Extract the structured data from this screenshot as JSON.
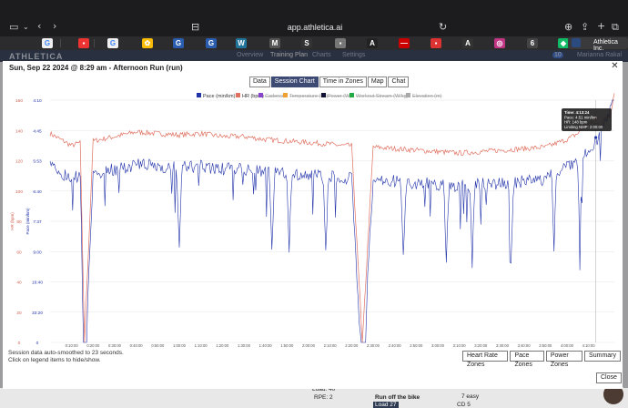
{
  "browser": {
    "url": "app.athletica.ai",
    "active_tab_label": "Athletica Inc."
  },
  "site_nav": {
    "logo": "ATHLETICA",
    "items": [
      "Overview",
      "Training Plan",
      "Charts",
      "Settings"
    ],
    "notification_count": "10",
    "user": "Marianna Rakal"
  },
  "modal": {
    "title": "Sun, Sep 22 2024 @ 8:29 am - Afternoon Run (run)",
    "tabs": [
      "Data",
      "Session Chart",
      "Time in Zones",
      "Map",
      "Chat"
    ],
    "active_tab": "Session Chart",
    "footnote_line1": "Session data auto-smoothed to 23 seconds.",
    "footnote_line2": "Click on legend items to hide/show.",
    "zone_buttons": [
      "Heart Rate Zones",
      "Pace Zones",
      "Power Zones",
      "Summary"
    ],
    "close_label": "Close"
  },
  "chart_data": {
    "type": "line",
    "legend": [
      {
        "name": "Pace (min/km)",
        "color": "#2233aa",
        "active": true
      },
      {
        "name": "HR (bpm)",
        "color": "#e07060",
        "active": true
      },
      {
        "name": "Cadence",
        "color": "#8844cc",
        "active": false
      },
      {
        "name": "Temperature (°C)",
        "color": "#f0a030",
        "active": false
      },
      {
        "name": "Power (W)",
        "color": "#111133",
        "active": false
      },
      {
        "name": "Workout Stream (W/kg)",
        "color": "#22aa44",
        "active": false
      },
      {
        "name": "Elevation (m)",
        "color": "#aaaaaa",
        "active": false
      }
    ],
    "hr_axis_ticks": [
      "160",
      "140",
      "120",
      "100",
      "80",
      "60",
      "40",
      "20",
      "0"
    ],
    "pace_axis_ticks": [
      "4:10",
      "4:45",
      "5:53",
      "6:40",
      "7:37",
      "9:00",
      "16:40",
      "33:20",
      "0"
    ],
    "hr_axis_label": "HR (bpm)",
    "pace_axis_label": "Pace (min/km)",
    "hr_range": [
      0,
      160
    ],
    "x_ticks": [
      "0:10:00",
      "0:20:00",
      "0:30:00",
      "0:40:00",
      "0:50:00",
      "1:00:00",
      "1:10:00",
      "1:20:00",
      "1:30:00",
      "1:40:00",
      "1:50:00",
      "2:00:00",
      "2:10:00",
      "2:20:00",
      "2:30:00",
      "2:40:00",
      "2:50:00",
      "3:00:00",
      "3:10:00",
      "3:20:00",
      "3:30:00",
      "3:40:00",
      "3:50:00",
      "4:00:00",
      "4:10:00"
    ],
    "duration_minutes": 262,
    "hr_series": {
      "t_min": [
        0,
        5,
        10,
        14,
        16,
        20,
        30,
        40,
        50,
        60,
        70,
        80,
        90,
        100,
        110,
        120,
        130,
        135,
        140,
        145,
        150,
        160,
        170,
        180,
        190,
        200,
        210,
        220,
        230,
        240,
        245,
        250,
        255,
        258,
        260,
        262
      ],
      "bpm": [
        138,
        134,
        130,
        132,
        0,
        133,
        136,
        139,
        138,
        137,
        138,
        136,
        136,
        134,
        133,
        132,
        131,
        130,
        130,
        0,
        129,
        128,
        127,
        126,
        125,
        126,
        127,
        128,
        129,
        134,
        138,
        145,
        144,
        148,
        150,
        165
      ]
    },
    "pace_spikes_t_min": [
      16,
      60,
      103,
      111,
      128,
      146,
      164,
      184,
      196,
      214,
      234,
      246
    ],
    "tooltip": {
      "time": "Time: 4:13:24",
      "pace": "Pace: 4:51 min/km",
      "hr": "HR: 148 bpm",
      "nmp": "Limiting NMP: 2:00:00"
    }
  },
  "background_items": [
    {
      "label": "Load: 40"
    },
    {
      "label": "RPE: 2"
    },
    {
      "label": "Run off the bike"
    },
    {
      "label": "Load 27"
    },
    {
      "label": "7 easy"
    },
    {
      "label": "CD 5"
    }
  ]
}
